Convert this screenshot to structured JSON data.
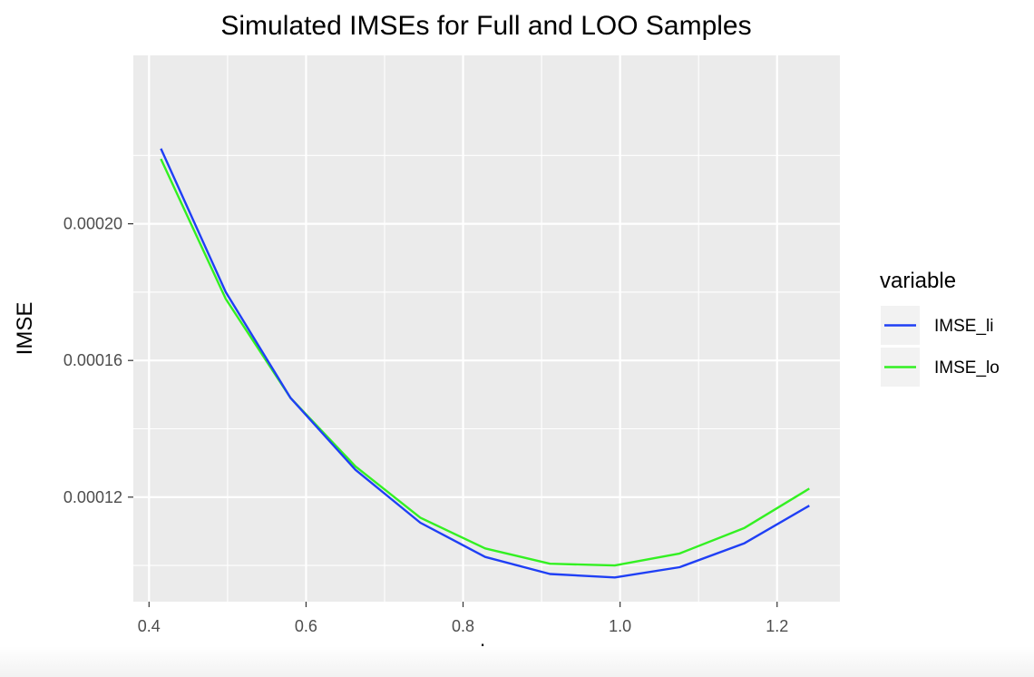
{
  "chart_data": {
    "type": "line",
    "title": "Simulated IMSEs for Full and LOO Samples",
    "xlabel": "h",
    "ylabel": "IMSE",
    "xlim": [
      0.38,
      1.28
    ],
    "ylim": [
      8.94e-05,
      0.0002493
    ],
    "x_ticks": [
      0.4,
      0.6,
      0.8,
      1.0,
      1.2
    ],
    "x_tick_labels": [
      "0.4",
      "0.6",
      "0.8",
      "1.0",
      "1.2"
    ],
    "y_ticks": [
      0.00012,
      0.00016,
      0.0002
    ],
    "y_tick_labels": [
      "0.00012",
      "0.00016",
      "0.00020"
    ],
    "grid": true,
    "legend_position": "right",
    "legend_title": "variable",
    "x": [
      0.4151,
      0.4977,
      0.5803,
      0.6629,
      0.7455,
      0.8281,
      0.9107,
      0.9933,
      1.0759,
      1.1585,
      1.2411
    ],
    "series": [
      {
        "name": "IMSE_li",
        "color": "#1f3ff5",
        "values": [
          0.000222,
          0.00018,
          0.000149,
          0.000128,
          0.0001125,
          0.0001025,
          9.75e-05,
          9.65e-05,
          9.95e-05,
          0.0001065,
          0.0001175
        ]
      },
      {
        "name": "IMSE_lo",
        "color": "#33f022",
        "values": [
          0.000219,
          0.000178,
          0.000149,
          0.000129,
          0.000114,
          0.000105,
          0.0001005,
          0.0001,
          0.0001035,
          0.000111,
          0.0001225
        ]
      }
    ]
  }
}
